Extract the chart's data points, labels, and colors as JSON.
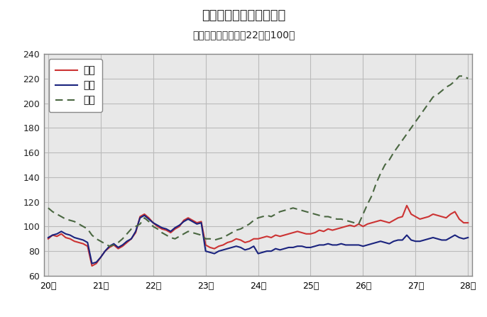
{
  "title": "鳥取県鉱工業指数の推移",
  "subtitle": "（季節調整済、平成22年＝100）",
  "title_color": "#222222",
  "background_color": "#ffffff",
  "plot_bg_color": "#e8e8e8",
  "ylim": [
    60,
    240
  ],
  "yticks": [
    60,
    80,
    100,
    120,
    140,
    160,
    180,
    200,
    220,
    240
  ],
  "xtick_labels": [
    "20年",
    "21年",
    "22年",
    "23年",
    "24年",
    "25年",
    "26年",
    "27年",
    "28年"
  ],
  "xtick_positions": [
    0,
    12,
    24,
    36,
    48,
    60,
    72,
    84,
    96
  ],
  "production_color": "#cc3333",
  "shipment_color": "#1a237e",
  "inventory_color": "#4a6741",
  "legend_labels": [
    "生産",
    "出荷",
    "在庫"
  ],
  "production": [
    90,
    93,
    92,
    94,
    91,
    90,
    88,
    87,
    86,
    84,
    68,
    70,
    75,
    80,
    83,
    85,
    82,
    84,
    87,
    90,
    95,
    108,
    110,
    107,
    103,
    100,
    98,
    97,
    95,
    98,
    100,
    105,
    107,
    105,
    103,
    104,
    85,
    83,
    82,
    84,
    85,
    87,
    88,
    90,
    89,
    87,
    88,
    90,
    90,
    91,
    92,
    91,
    93,
    92,
    93,
    94,
    95,
    96,
    95,
    94,
    94,
    95,
    97,
    96,
    98,
    97,
    98,
    99,
    100,
    101,
    100,
    102,
    100,
    102,
    103,
    104,
    105,
    104,
    103,
    105,
    107,
    108,
    117,
    110,
    108,
    106,
    107,
    108,
    110,
    109,
    108,
    107,
    110,
    112,
    106,
    103,
    103
  ],
  "shipment": [
    91,
    93,
    94,
    96,
    94,
    93,
    91,
    90,
    89,
    87,
    70,
    71,
    75,
    80,
    84,
    86,
    83,
    85,
    88,
    90,
    96,
    107,
    109,
    106,
    103,
    101,
    99,
    98,
    96,
    99,
    101,
    104,
    106,
    104,
    102,
    103,
    80,
    79,
    78,
    80,
    81,
    82,
    83,
    84,
    83,
    81,
    82,
    84,
    78,
    79,
    80,
    80,
    82,
    81,
    82,
    83,
    83,
    84,
    84,
    83,
    83,
    84,
    85,
    85,
    86,
    85,
    85,
    86,
    85,
    85,
    85,
    85,
    84,
    85,
    86,
    87,
    88,
    87,
    86,
    88,
    89,
    89,
    93,
    89,
    88,
    88,
    89,
    90,
    91,
    90,
    89,
    89,
    91,
    93,
    91,
    90,
    91
  ],
  "inventory": [
    115,
    112,
    110,
    108,
    106,
    105,
    104,
    102,
    100,
    98,
    93,
    90,
    88,
    86,
    84,
    85,
    87,
    90,
    94,
    98,
    100,
    102,
    107,
    104,
    100,
    98,
    95,
    93,
    91,
    90,
    92,
    94,
    96,
    95,
    94,
    93,
    90,
    90,
    89,
    90,
    91,
    93,
    95,
    97,
    98,
    100,
    102,
    105,
    107,
    108,
    109,
    108,
    110,
    112,
    113,
    114,
    115,
    114,
    113,
    112,
    111,
    110,
    109,
    108,
    108,
    107,
    106,
    106,
    105,
    104,
    103,
    102,
    110,
    118,
    125,
    135,
    143,
    150,
    154,
    160,
    165,
    170,
    175,
    180,
    185,
    190,
    195,
    200,
    205,
    207,
    210,
    213,
    215,
    218,
    222,
    222,
    220
  ]
}
